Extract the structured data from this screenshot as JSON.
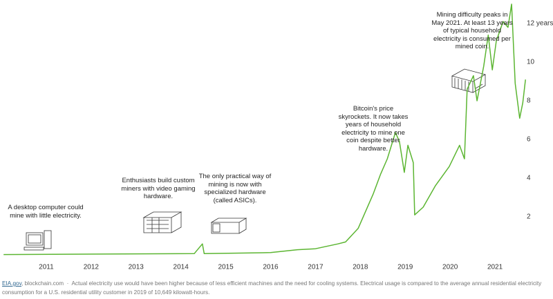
{
  "chart_data": {
    "type": "line",
    "x": [
      2010.05,
      2014.3,
      2014.48,
      2014.52,
      2016.0,
      2016.6,
      2017.0,
      2017.5,
      2017.67,
      2017.95,
      2018.29,
      2018.45,
      2018.6,
      2018.78,
      2018.87,
      2018.98,
      2019.06,
      2019.18,
      2019.21,
      2019.4,
      2019.67,
      2019.98,
      2020.21,
      2020.32,
      2020.38,
      2020.52,
      2020.6,
      2020.75,
      2020.85,
      2020.94,
      2021.03,
      2021.18,
      2021.29,
      2021.37,
      2021.45,
      2021.55,
      2021.62,
      2021.68
    ],
    "values": [
      0.05,
      0.1,
      0.6,
      0.1,
      0.15,
      0.3,
      0.35,
      0.6,
      0.7,
      1.4,
      3.2,
      4.2,
      5.0,
      6.36,
      5.9,
      4.3,
      5.7,
      4.8,
      2.1,
      2.5,
      3.6,
      4.6,
      5.7,
      5.0,
      8.6,
      9.3,
      8.0,
      9.8,
      11.4,
      9.6,
      11.1,
      12.1,
      11.8,
      13.0,
      8.9,
      7.1,
      7.9,
      9.1
    ],
    "color": "#5bb531",
    "xlim": [
      2010,
      2021.8
    ],
    "xticks": [
      2011,
      2012,
      2013,
      2014,
      2015,
      2016,
      2017,
      2018,
      2019,
      2020,
      2021
    ],
    "ylim": [
      0,
      13.2
    ],
    "yticks": [
      2,
      4,
      6,
      8,
      10,
      {
        "value": 12,
        "label": "12 years"
      }
    ],
    "annotations": [
      "A desktop computer could mine with little electricity.",
      "Enthusiasts build custom miners with video gaming hardware.",
      "The only practical way of mining is now with specialized hardware (called ASICs).",
      "Bitcoin's price skyrockets. It now takes years of household electricity to mine one coin despite better hardware.",
      "Mining difficulty peaks in May 2021. At least 13 years of typical household electricity is consumed per mined coin."
    ],
    "source_link": "EIA.gov",
    "source_rest": ", blockchain.com",
    "note": "Actual electricity use would have been higher because of less efficient machines and the need for cooling systems. Electrical usage is compared to the average annual residential electricity consumption for a U.S. residential utility customer in 2019 of 10,649 kilowatt-hours."
  }
}
